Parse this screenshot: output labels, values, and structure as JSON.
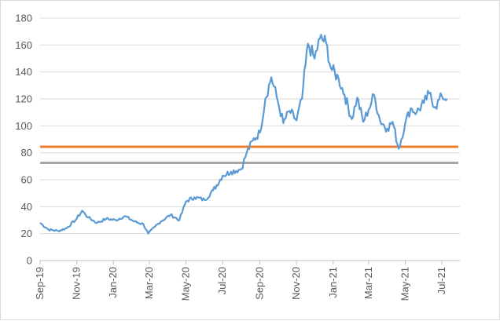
{
  "chart_data": {
    "type": "line",
    "title": "",
    "xlabel": "",
    "ylabel": "",
    "ylim": [
      0,
      180
    ],
    "y_ticks": [
      0,
      20,
      40,
      60,
      80,
      100,
      120,
      140,
      160,
      180
    ],
    "xlim": [
      "2019-09-01",
      "2021-07-31"
    ],
    "x_ticks": [
      {
        "date": "2019-09-01",
        "label": "Sep-19"
      },
      {
        "date": "2019-11-01",
        "label": "Nov-19"
      },
      {
        "date": "2020-01-01",
        "label": "Jan-20"
      },
      {
        "date": "2020-03-01",
        "label": "Mar-20"
      },
      {
        "date": "2020-05-01",
        "label": "May-20"
      },
      {
        "date": "2020-07-01",
        "label": "Jul-20"
      },
      {
        "date": "2020-09-01",
        "label": "Sep-20"
      },
      {
        "date": "2020-11-01",
        "label": "Nov-20"
      },
      {
        "date": "2021-01-01",
        "label": "Jan-21"
      },
      {
        "date": "2021-03-01",
        "label": "Mar-21"
      },
      {
        "date": "2021-05-01",
        "label": "May-21"
      },
      {
        "date": "2021-07-01",
        "label": "Jul-21"
      }
    ],
    "grid": true,
    "legend": "none",
    "series": [
      {
        "color": "#5b9bd5",
        "x": [
          "2019-09-01",
          "2019-09-15",
          "2019-10-01",
          "2019-10-15",
          "2019-11-01",
          "2019-11-10",
          "2019-11-20",
          "2019-12-05",
          "2019-12-20",
          "2020-01-05",
          "2020-01-20",
          "2020-02-05",
          "2020-02-20",
          "2020-02-28",
          "2020-03-10",
          "2020-03-20",
          "2020-04-05",
          "2020-04-20",
          "2020-05-01",
          "2020-05-15",
          "2020-06-01",
          "2020-06-15",
          "2020-07-01",
          "2020-07-15",
          "2020-08-01",
          "2020-08-10",
          "2020-08-20",
          "2020-09-01",
          "2020-09-10",
          "2020-09-20",
          "2020-10-01",
          "2020-10-10",
          "2020-10-20",
          "2020-11-01",
          "2020-11-10",
          "2020-11-20",
          "2020-12-01",
          "2020-12-10",
          "2020-12-20",
          "2020-12-28",
          "2021-01-10",
          "2021-01-20",
          "2021-02-01",
          "2021-02-10",
          "2021-02-20",
          "2021-03-01",
          "2021-03-10",
          "2021-03-20",
          "2021-04-01",
          "2021-04-10",
          "2021-04-20",
          "2021-05-01",
          "2021-05-10",
          "2021-05-20",
          "2021-06-01",
          "2021-06-10",
          "2021-06-20",
          "2021-07-01",
          "2021-07-10"
        ],
        "values": [
          28,
          23,
          22,
          24,
          31,
          37,
          32,
          28,
          31,
          30,
          33,
          29,
          27,
          20,
          25,
          29,
          34,
          30,
          44,
          47,
          45,
          52,
          63,
          66,
          68,
          80,
          89,
          95,
          120,
          136,
          118,
          102,
          111,
          104,
          120,
          161,
          150,
          165,
          162,
          143,
          135,
          123,
          105,
          121,
          103,
          112,
          123,
          104,
          98,
          103,
          83,
          102,
          113,
          110,
          117,
          124,
          114,
          122,
          120
        ]
      }
    ],
    "reference_lines": [
      {
        "value": 84.5,
        "color": "#ed7d31"
      },
      {
        "value": 72.5,
        "color": "#a5a5a5"
      }
    ]
  }
}
